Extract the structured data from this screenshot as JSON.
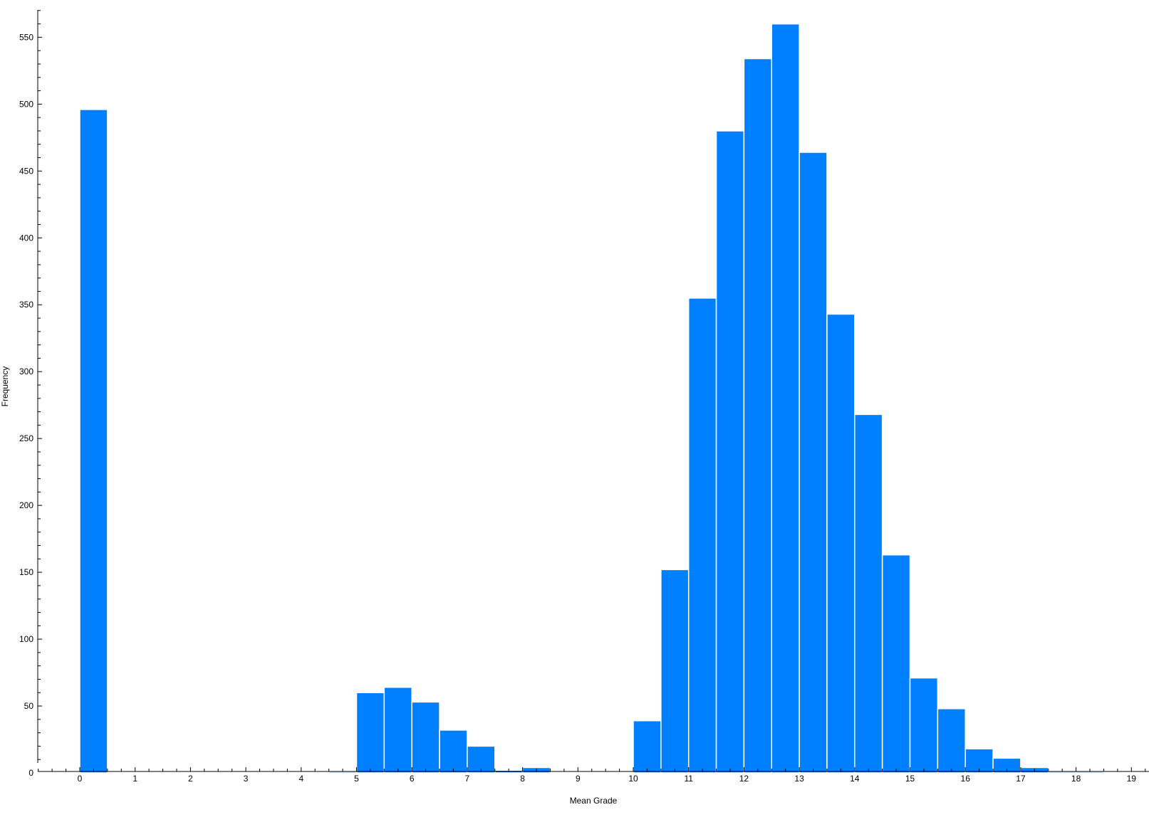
{
  "chart_data": {
    "type": "bar",
    "xlabel": "Mean Grade",
    "ylabel": "Frequency",
    "bar_color": "#007fff",
    "bar_edge_color": "#ffffff",
    "grid": false,
    "xlim": [
      -0.75,
      19.25
    ],
    "ylim": [
      -10,
      570
    ],
    "x_ticks": [
      0,
      1,
      2,
      3,
      4,
      5,
      6,
      7,
      8,
      9,
      10,
      11,
      12,
      13,
      14,
      15,
      16,
      17,
      18,
      19
    ],
    "y_ticks": [
      0,
      50,
      100,
      150,
      200,
      250,
      300,
      350,
      400,
      450,
      500,
      550
    ],
    "bin_width": 0.5,
    "bins": [
      {
        "x": 0.0,
        "value": 496
      },
      {
        "x": 4.5,
        "value": 1
      },
      {
        "x": 5.0,
        "value": 60
      },
      {
        "x": 5.5,
        "value": 64
      },
      {
        "x": 6.0,
        "value": 53
      },
      {
        "x": 6.5,
        "value": 32
      },
      {
        "x": 7.0,
        "value": 20
      },
      {
        "x": 7.5,
        "value": 2
      },
      {
        "x": 8.0,
        "value": 4
      },
      {
        "x": 10.0,
        "value": 39
      },
      {
        "x": 10.5,
        "value": 152
      },
      {
        "x": 11.0,
        "value": 355
      },
      {
        "x": 11.5,
        "value": 480
      },
      {
        "x": 12.0,
        "value": 534
      },
      {
        "x": 12.5,
        "value": 560
      },
      {
        "x": 13.0,
        "value": 464
      },
      {
        "x": 13.5,
        "value": 343
      },
      {
        "x": 14.0,
        "value": 268
      },
      {
        "x": 14.5,
        "value": 163
      },
      {
        "x": 15.0,
        "value": 71
      },
      {
        "x": 15.5,
        "value": 48
      },
      {
        "x": 16.0,
        "value": 18
      },
      {
        "x": 16.5,
        "value": 11
      },
      {
        "x": 17.0,
        "value": 4
      },
      {
        "x": 17.5,
        "value": 1
      },
      {
        "x": 18.0,
        "value": 1
      }
    ]
  }
}
